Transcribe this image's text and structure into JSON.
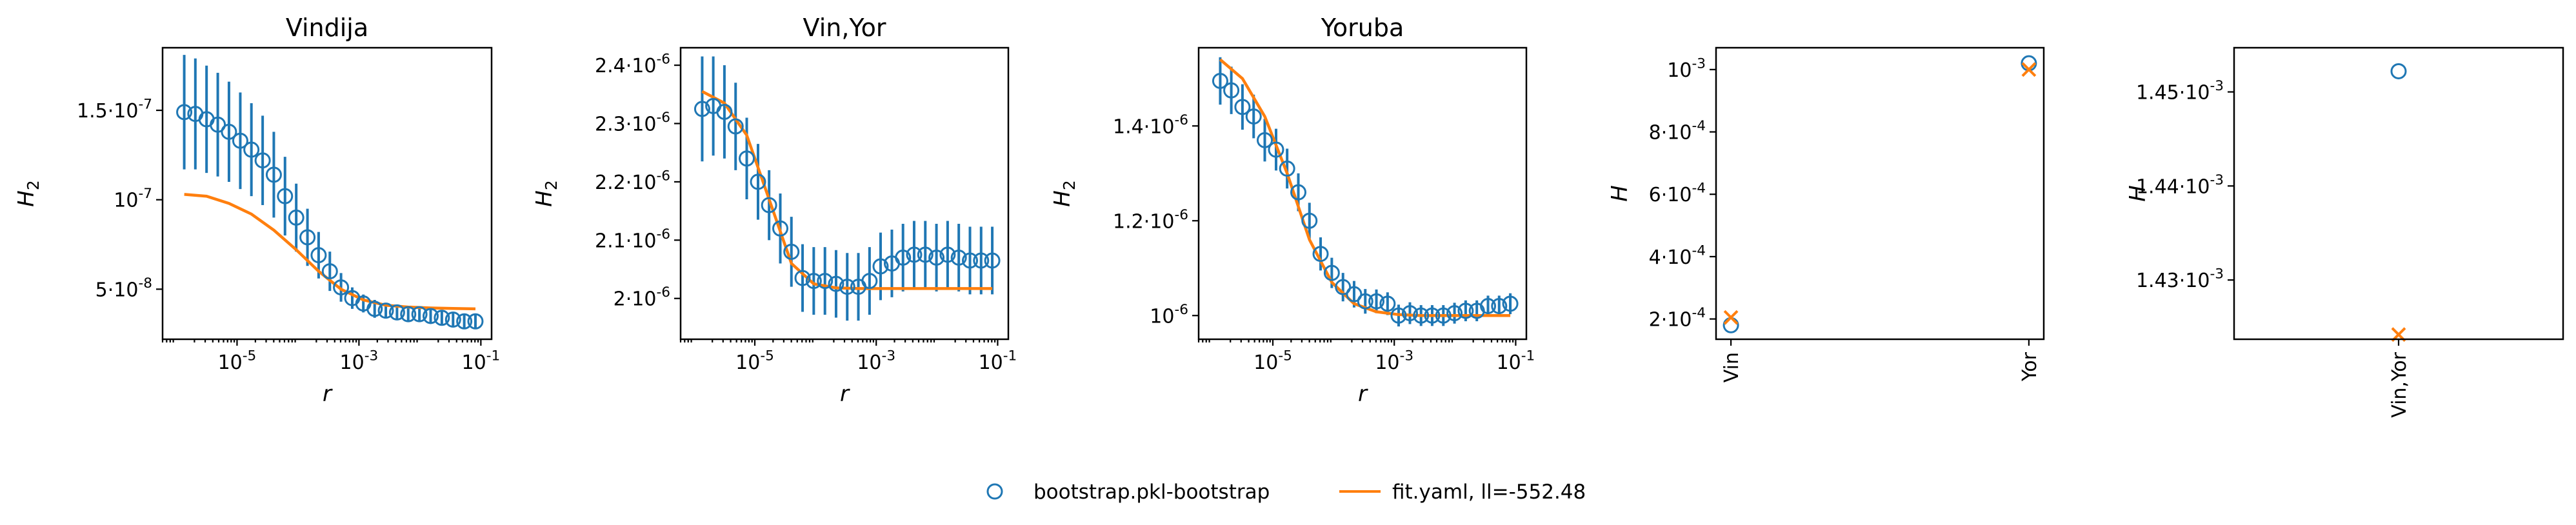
{
  "colors": {
    "data": "#1f77b4",
    "fit": "#ff7f0e"
  },
  "legend": {
    "placement": "bottom-center",
    "items": [
      {
        "label": "bootstrap.pkl-bootstrap",
        "marker": "open-circle",
        "color": "#1f77b4"
      },
      {
        "label": "fit.yaml, ll=-552.48",
        "marker": "line",
        "color": "#ff7f0e"
      }
    ]
  },
  "chart_data": [
    {
      "type": "line",
      "title": "Vindija",
      "xlabel": "r",
      "ylabel": "H_2",
      "xscale": "log",
      "xlim": [
        6e-07,
        0.15
      ],
      "ylim": [
        2.2e-08,
        1.85e-07
      ],
      "xticks": [
        {
          "value": 1e-05,
          "label": "10^{-5}"
        },
        {
          "value": 0.001,
          "label": "10^{-3}"
        },
        {
          "value": 0.1,
          "label": "10^{-1}"
        }
      ],
      "yticks": [
        {
          "value": 5e-08,
          "label": "5·10^{-8}"
        },
        {
          "value": 1e-07,
          "label": "10^{-7}"
        },
        {
          "value": 1.5e-07,
          "label": "1.5·10^{-7}"
        }
      ],
      "series": [
        {
          "kind": "errorbar",
          "marker": "open-circle",
          "r": [
            1.36e-06,
            2.07e-06,
            3.16e-06,
            4.83e-06,
            7.37e-06,
            1.13e-05,
            1.72e-05,
            2.63e-05,
            4.01e-05,
            6.12e-05,
            9.35e-05,
            0.000143,
            0.000218,
            0.000333,
            0.000508,
            0.000776,
            0.00118,
            0.00181,
            0.00276,
            0.00421,
            0.00643,
            0.00982,
            0.015,
            0.0229,
            0.035,
            0.0534,
            0.0815
          ],
          "y": [
            1.49e-07,
            1.48e-07,
            1.45e-07,
            1.42e-07,
            1.38e-07,
            1.33e-07,
            1.28e-07,
            1.22e-07,
            1.14e-07,
            1.02e-07,
            9e-08,
            7.9e-08,
            6.9e-08,
            6e-08,
            5.1e-08,
            4.5e-08,
            4.2e-08,
            3.9e-08,
            3.8e-08,
            3.7e-08,
            3.6e-08,
            3.6e-08,
            3.5e-08,
            3.4e-08,
            3.3e-08,
            3.2e-08,
            3.2e-08
          ],
          "err": [
            3.2e-08,
            3.1e-08,
            3e-08,
            2.9e-08,
            2.8e-08,
            2.7e-08,
            2.6e-08,
            2.5e-08,
            2.4e-08,
            2.2e-08,
            1.9e-08,
            1.6e-08,
            1.3e-08,
            1.1e-08,
            8e-09,
            6e-09,
            5e-09,
            5e-09,
            4e-09,
            4e-09,
            4e-09,
            4e-09,
            4e-09,
            4e-09,
            4e-09,
            4e-09,
            4e-09
          ]
        },
        {
          "kind": "line",
          "r": [
            1.36e-06,
            3.16e-06,
            7.37e-06,
            1.72e-05,
            4.01e-05,
            9.35e-05,
            0.000218,
            0.000508,
            0.00118,
            0.00276,
            0.00643,
            0.015,
            0.035,
            0.0815
          ],
          "y": [
            1.03e-07,
            1.02e-07,
            9.8e-08,
            9.2e-08,
            8.3e-08,
            7.2e-08,
            6e-08,
            5e-08,
            4.4e-08,
            4.1e-08,
            4e-08,
            3.95e-08,
            3.92e-08,
            3.9e-08
          ]
        }
      ]
    },
    {
      "type": "line",
      "title": "Vin,Yor",
      "xlabel": "r",
      "ylabel": "H_2",
      "xscale": "log",
      "xlim": [
        6e-07,
        0.15
      ],
      "ylim": [
        1.93e-06,
        2.43e-06
      ],
      "xticks": [
        {
          "value": 1e-05,
          "label": "10^{-5}"
        },
        {
          "value": 0.001,
          "label": "10^{-3}"
        },
        {
          "value": 0.1,
          "label": "10^{-1}"
        }
      ],
      "yticks": [
        {
          "value": 2e-06,
          "label": "2·10^{-6}"
        },
        {
          "value": 2.1e-06,
          "label": "2.1·10^{-6}"
        },
        {
          "value": 2.2e-06,
          "label": "2.2·10^{-6}"
        },
        {
          "value": 2.3e-06,
          "label": "2.3·10^{-6}"
        },
        {
          "value": 2.4e-06,
          "label": "2.4·10^{-6}"
        }
      ],
      "series": [
        {
          "kind": "errorbar",
          "marker": "open-circle",
          "r": [
            1.36e-06,
            2.07e-06,
            3.16e-06,
            4.83e-06,
            7.37e-06,
            1.13e-05,
            1.72e-05,
            2.63e-05,
            4.01e-05,
            6.12e-05,
            9.35e-05,
            0.000143,
            0.000218,
            0.000333,
            0.000508,
            0.000776,
            0.00118,
            0.00181,
            0.00276,
            0.00421,
            0.00643,
            0.00982,
            0.015,
            0.0229,
            0.035,
            0.0534,
            0.0815
          ],
          "y": [
            2.325e-06,
            2.33e-06,
            2.32e-06,
            2.295e-06,
            2.24e-06,
            2.2e-06,
            2.16e-06,
            2.12e-06,
            2.08e-06,
            2.035e-06,
            2.03e-06,
            2.03e-06,
            2.025e-06,
            2.02e-06,
            2.02e-06,
            2.03e-06,
            2.055e-06,
            2.06e-06,
            2.07e-06,
            2.075e-06,
            2.075e-06,
            2.07e-06,
            2.075e-06,
            2.07e-06,
            2.065e-06,
            2.065e-06,
            2.065e-06
          ],
          "err": [
            9e-08,
            8.5e-08,
            8e-08,
            7.5e-08,
            7e-08,
            6.5e-08,
            6e-08,
            6e-08,
            6e-08,
            5.8e-08,
            5.8e-08,
            5.8e-08,
            5.8e-08,
            5.8e-08,
            5.8e-08,
            5.8e-08,
            5.8e-08,
            5.8e-08,
            5.8e-08,
            5.8e-08,
            5.8e-08,
            5.8e-08,
            5.8e-08,
            5.8e-08,
            5.8e-08,
            5.8e-08,
            5.8e-08
          ]
        },
        {
          "kind": "line",
          "r": [
            1.36e-06,
            3.16e-06,
            7.37e-06,
            1.72e-05,
            4.01e-05,
            9.35e-05,
            0.000218,
            0.000508,
            0.00118,
            0.00276,
            0.00643,
            0.015,
            0.035,
            0.0815
          ],
          "y": [
            2.355e-06,
            2.335e-06,
            2.28e-06,
            2.17e-06,
            2.06e-06,
            2.025e-06,
            2.018e-06,
            2.017e-06,
            2.017e-06,
            2.017e-06,
            2.017e-06,
            2.017e-06,
            2.017e-06,
            2.017e-06
          ]
        }
      ]
    },
    {
      "type": "line",
      "title": "Yoruba",
      "xlabel": "r",
      "ylabel": "H_2",
      "xscale": "log",
      "xlim": [
        6e-07,
        0.15
      ],
      "ylim": [
        9.5e-07,
        1.565e-06
      ],
      "xticks": [
        {
          "value": 1e-05,
          "label": "10^{-5}"
        },
        {
          "value": 0.001,
          "label": "10^{-3}"
        },
        {
          "value": 0.1,
          "label": "10^{-1}"
        }
      ],
      "yticks": [
        {
          "value": 1e-06,
          "label": "10^{-6}"
        },
        {
          "value": 1.2e-06,
          "label": "1.2·10^{-6}"
        },
        {
          "value": 1.4e-06,
          "label": "1.4·10^{-6}"
        }
      ],
      "series": [
        {
          "kind": "errorbar",
          "marker": "open-circle",
          "r": [
            1.36e-06,
            2.07e-06,
            3.16e-06,
            4.83e-06,
            7.37e-06,
            1.13e-05,
            1.72e-05,
            2.63e-05,
            4.01e-05,
            6.12e-05,
            9.35e-05,
            0.000143,
            0.000218,
            0.000333,
            0.000508,
            0.000776,
            0.00118,
            0.00181,
            0.00276,
            0.00421,
            0.00643,
            0.00982,
            0.015,
            0.0229,
            0.035,
            0.0534,
            0.0815
          ],
          "y": [
            1.495e-06,
            1.475e-06,
            1.44e-06,
            1.42e-06,
            1.37e-06,
            1.35e-06,
            1.31e-06,
            1.26e-06,
            1.2e-06,
            1.13e-06,
            1.09e-06,
            1.06e-06,
            1.045e-06,
            1.03e-06,
            1.03e-06,
            1.025e-06,
            1e-06,
            1.005e-06,
            1e-06,
            1e-06,
            1e-06,
            1.005e-06,
            1.01e-06,
            1.01e-06,
            1.02e-06,
            1.02e-06,
            1.025e-06
          ],
          "err": [
            5e-08,
            5e-08,
            4.8e-08,
            4.6e-08,
            4.5e-08,
            4.4e-08,
            4.2e-08,
            4e-08,
            3.8e-08,
            3.5e-08,
            3.2e-08,
            3e-08,
            2.8e-08,
            2.6e-08,
            2.5e-08,
            2.4e-08,
            2.3e-08,
            2.3e-08,
            2.2e-08,
            2.2e-08,
            2.2e-08,
            2.2e-08,
            2.2e-08,
            2.2e-08,
            2.2e-08,
            2.2e-08,
            2.2e-08
          ]
        },
        {
          "kind": "line",
          "r": [
            1.36e-06,
            3.16e-06,
            7.37e-06,
            1.72e-05,
            4.01e-05,
            9.35e-05,
            0.000218,
            0.000508,
            0.00118,
            0.00276,
            0.00643,
            0.015,
            0.035,
            0.0815
          ],
          "y": [
            1.54e-06,
            1.5e-06,
            1.42e-06,
            1.3e-06,
            1.16e-06,
            1.07e-06,
            1.025e-06,
            1.008e-06,
            1.002e-06,
            1e-06,
            1e-06,
            1e-06,
            1e-06,
            1e-06
          ]
        }
      ]
    },
    {
      "type": "scatter",
      "title": "",
      "xlabel": "",
      "ylabel": "H",
      "categories": [
        "Vin",
        "Yor"
      ],
      "ylim": [
        0.000135,
        0.00107
      ],
      "yticks": [
        {
          "value": 0.0002,
          "label": "2·10^{-4}"
        },
        {
          "value": 0.0004,
          "label": "4·10^{-4}"
        },
        {
          "value": 0.0006,
          "label": "6·10^{-4}"
        },
        {
          "value": 0.0008,
          "label": "8·10^{-4}"
        },
        {
          "value": 0.001,
          "label": "10^{-3}"
        }
      ],
      "series": [
        {
          "kind": "open-circle",
          "values": [
            0.00018,
            0.00102
          ]
        },
        {
          "kind": "x-marker",
          "values": [
            0.000205,
            0.001
          ]
        }
      ]
    },
    {
      "type": "scatter",
      "title": "",
      "xlabel": "",
      "ylabel": "H",
      "categories": [
        "Vin,Yor"
      ],
      "ylim": [
        0.0014237,
        0.0014547
      ],
      "yticks": [
        {
          "value": 0.00143,
          "label": "1.43·10^{-3}"
        },
        {
          "value": 0.00144,
          "label": "1.44·10^{-3}"
        },
        {
          "value": 0.00145,
          "label": "1.45·10^{-3}"
        }
      ],
      "series": [
        {
          "kind": "open-circle",
          "values": [
            0.0014522
          ]
        },
        {
          "kind": "x-marker",
          "values": [
            0.0014242
          ]
        }
      ]
    }
  ]
}
